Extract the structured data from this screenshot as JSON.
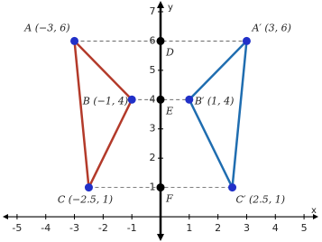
{
  "axes": {
    "xlabel": "x",
    "ylabel": "y",
    "xlim": [
      -5.5,
      5.5
    ],
    "ylim": [
      -0.8,
      7.4
    ],
    "xticks": [
      -5,
      -4,
      -3,
      -2,
      -1,
      1,
      2,
      3,
      4,
      5
    ],
    "yticks": [
      1,
      2,
      3,
      4,
      5,
      6,
      7
    ]
  },
  "shapes": [
    {
      "color": "#b33a2a",
      "point_color": "#2130c8",
      "points": [
        {
          "label": "A (−3, 6)",
          "x": -3,
          "y": 6
        },
        {
          "label": "B (−1, 4)",
          "x": -1,
          "y": 4
        },
        {
          "label": "C (−2.5, 1)",
          "x": -2.5,
          "y": 1
        }
      ]
    },
    {
      "color": "#1f6db0",
      "point_color": "#2130c8",
      "points": [
        {
          "label": "A′ (3, 6)",
          "x": 3,
          "y": 6
        },
        {
          "label": "B′ (1, 4)",
          "x": 1,
          "y": 4
        },
        {
          "label": "C′ (2.5, 1)",
          "x": 2.5,
          "y": 1
        }
      ]
    }
  ],
  "axis_points": [
    {
      "label": "D",
      "x": 0,
      "y": 6
    },
    {
      "label": "E",
      "x": 0,
      "y": 4
    },
    {
      "label": "F",
      "x": 0,
      "y": 1
    }
  ]
}
